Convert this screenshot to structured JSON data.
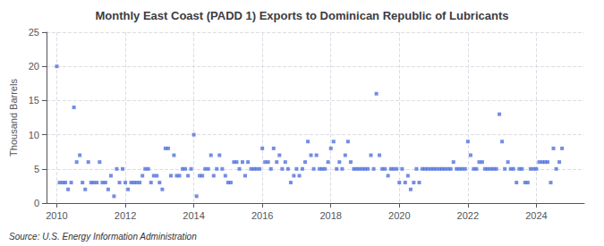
{
  "chart_data": {
    "type": "scatter",
    "title": "Monthly East Coast (PADD 1) Exports to Dominican Republic of Lubricants",
    "ylabel": "Thousand Barrels",
    "annotation": "Source: U.S. Energy Information Administration",
    "marker": "square",
    "grid": true,
    "xlim": [
      2009.7,
      2025.4
    ],
    "xticks": [
      2010,
      2012,
      2014,
      2016,
      2018,
      2020,
      2022,
      2024
    ],
    "ylim": [
      0,
      25
    ],
    "yticks": [
      0,
      5,
      10,
      15,
      20,
      25
    ],
    "x": [
      2010.0,
      2010.08,
      2010.17,
      2010.25,
      2010.33,
      2010.42,
      2010.5,
      2010.58,
      2010.67,
      2010.75,
      2010.83,
      2010.92,
      2011.0,
      2011.08,
      2011.17,
      2011.25,
      2011.33,
      2011.42,
      2011.5,
      2011.58,
      2011.67,
      2011.75,
      2011.83,
      2011.92,
      2012.0,
      2012.08,
      2012.17,
      2012.25,
      2012.33,
      2012.42,
      2012.5,
      2012.58,
      2012.67,
      2012.75,
      2012.83,
      2012.92,
      2013.0,
      2013.08,
      2013.17,
      2013.25,
      2013.33,
      2013.42,
      2013.5,
      2013.58,
      2013.67,
      2013.75,
      2013.83,
      2013.92,
      2014.0,
      2014.08,
      2014.17,
      2014.25,
      2014.33,
      2014.42,
      2014.5,
      2014.58,
      2014.67,
      2014.75,
      2014.83,
      2014.92,
      2015.0,
      2015.08,
      2015.17,
      2015.25,
      2015.33,
      2015.42,
      2015.5,
      2015.58,
      2015.67,
      2015.75,
      2015.83,
      2015.92,
      2016.0,
      2016.08,
      2016.17,
      2016.25,
      2016.33,
      2016.42,
      2016.5,
      2016.58,
      2016.67,
      2016.75,
      2016.83,
      2016.92,
      2017.0,
      2017.08,
      2017.17,
      2017.25,
      2017.33,
      2017.42,
      2017.5,
      2017.58,
      2017.67,
      2017.75,
      2017.83,
      2017.92,
      2018.0,
      2018.08,
      2018.17,
      2018.25,
      2018.33,
      2018.42,
      2018.5,
      2018.58,
      2018.67,
      2018.75,
      2018.83,
      2018.92,
      2019.0,
      2019.08,
      2019.17,
      2019.25,
      2019.33,
      2019.42,
      2019.5,
      2019.58,
      2019.67,
      2019.75,
      2019.83,
      2019.92,
      2020.0,
      2020.08,
      2020.17,
      2020.25,
      2020.33,
      2020.42,
      2020.5,
      2020.58,
      2020.67,
      2020.75,
      2020.83,
      2020.92,
      2021.0,
      2021.08,
      2021.17,
      2021.25,
      2021.33,
      2021.42,
      2021.5,
      2021.58,
      2021.67,
      2021.75,
      2021.83,
      2021.92,
      2022.0,
      2022.08,
      2022.17,
      2022.25,
      2022.33,
      2022.42,
      2022.5,
      2022.58,
      2022.67,
      2022.75,
      2022.83,
      2022.92,
      2023.0,
      2023.08,
      2023.17,
      2023.25,
      2023.33,
      2023.42,
      2023.5,
      2023.58,
      2023.67,
      2023.75,
      2023.83,
      2023.92,
      2024.0,
      2024.08,
      2024.17,
      2024.25,
      2024.33,
      2024.42,
      2024.5,
      2024.58,
      2024.67,
      2024.75
    ],
    "values": [
      20,
      3,
      3,
      3,
      2,
      3,
      14,
      6,
      7,
      3,
      2,
      6,
      3,
      3,
      3,
      6,
      3,
      3,
      2,
      4,
      1,
      5,
      3,
      5,
      3,
      2,
      3,
      3,
      3,
      3,
      4,
      5,
      5,
      3,
      4,
      4,
      3,
      2,
      8,
      8,
      4,
      7,
      4,
      4,
      5,
      5,
      4,
      5,
      10,
      1,
      4,
      4,
      5,
      5,
      7,
      4,
      5,
      7,
      5,
      4,
      3,
      3,
      6,
      6,
      5,
      6,
      4,
      6,
      5,
      5,
      5,
      5,
      8,
      6,
      6,
      5,
      8,
      6,
      7,
      5,
      6,
      5,
      3,
      4,
      5,
      4,
      5,
      6,
      9,
      7,
      5,
      7,
      5,
      5,
      5,
      6,
      8,
      9,
      5,
      6,
      5,
      7,
      9,
      6,
      5,
      5,
      5,
      5,
      5,
      5,
      7,
      5,
      16,
      7,
      5,
      5,
      4,
      5,
      5,
      5,
      3,
      5,
      3,
      4,
      2,
      3,
      5,
      3,
      5,
      5,
      5,
      5,
      5,
      5,
      5,
      5,
      5,
      5,
      5,
      6,
      5,
      5,
      5,
      5,
      9,
      7,
      5,
      5,
      6,
      6,
      5,
      5,
      5,
      5,
      5,
      13,
      9,
      5,
      6,
      5,
      5,
      3,
      5,
      5,
      3,
      3,
      5,
      5,
      5,
      6,
      6,
      6,
      6,
      3,
      8,
      5,
      6,
      8
    ]
  }
}
